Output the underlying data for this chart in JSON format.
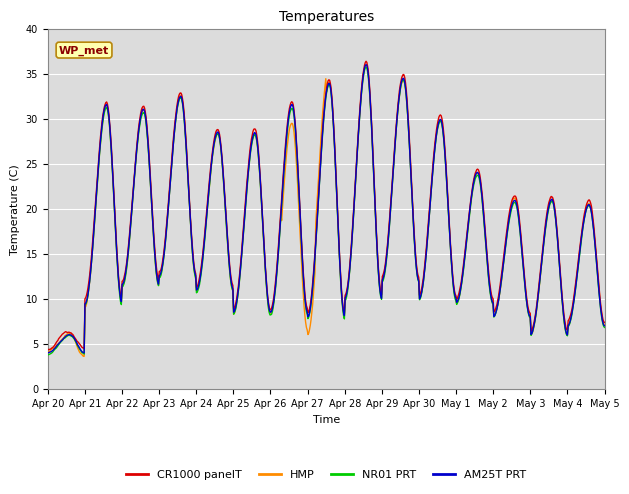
{
  "title": "Temperatures",
  "ylabel": "Temperature (C)",
  "xlabel": "Time",
  "ylim": [
    0,
    40
  ],
  "background_color": "#dcdcdc",
  "annotation_text": "WP_met",
  "annotation_bg": "#ffffb0",
  "annotation_border": "#b8860b",
  "legend_labels": [
    "CR1000 panelT",
    "HMP",
    "NR01 PRT",
    "AM25T PRT"
  ],
  "legend_colors": [
    "#dd0000",
    "#ff8c00",
    "#00cc00",
    "#0000cc"
  ],
  "line_width": 1.0,
  "title_fontsize": 10,
  "axis_label_fontsize": 8,
  "tick_fontsize": 7,
  "x_tick_labels": [
    "Apr 20",
    "Apr 21",
    "Apr 22",
    "Apr 23",
    "Apr 24",
    "Apr 25",
    "Apr 26",
    "Apr 27",
    "Apr 28",
    "Apr 29",
    "Apr 30",
    "May 1",
    "May 2",
    "May 3",
    "May 4",
    "May 5"
  ],
  "yticks": [
    0,
    5,
    10,
    15,
    20,
    25,
    30,
    35,
    40
  ],
  "grid_color": "#ffffff",
  "fig_width": 6.4,
  "fig_height": 4.8,
  "dpi": 100
}
